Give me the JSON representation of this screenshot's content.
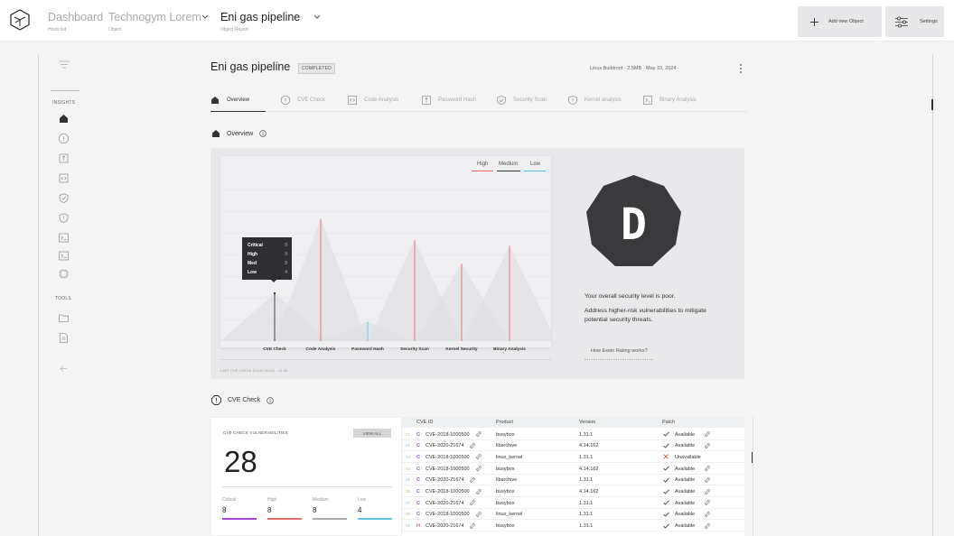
{
  "topbar": {
    "crumbs": [
      {
        "label": "Dashboard",
        "sub": "Hosts list"
      },
      {
        "label": "Technogym Lorem",
        "sub": "Object"
      },
      {
        "label": "Eni gas pipeline",
        "sub": "Object Report"
      }
    ],
    "add_button": "Add new Object",
    "settings_button": "Settings"
  },
  "sidebar": {
    "insights_label": "INSIGHTS",
    "tools_label": "TOOLS"
  },
  "report": {
    "title": "Eni gas pipeline",
    "status": "COMPLETED",
    "meta": "Linux Buildroot · 2.5MB · May 10, 2024 ·"
  },
  "tabs": [
    {
      "label": "Overview",
      "icon": "home-icon"
    },
    {
      "label": "CVE Check",
      "icon": "alert-octagon-icon"
    },
    {
      "label": "Code Analysis",
      "icon": "code-icon"
    },
    {
      "label": "Password Hash",
      "icon": "key-icon"
    },
    {
      "label": "Security Scan",
      "icon": "shield-check-icon"
    },
    {
      "label": "Kernel analysis",
      "icon": "shield-alert-icon"
    },
    {
      "label": "Binary Analysis",
      "icon": "terminal-icon"
    }
  ],
  "overview": {
    "heading": "Overview",
    "legend": [
      {
        "label": "High",
        "color": "#e26d6d"
      },
      {
        "label": "Medium",
        "color": "#333333"
      },
      {
        "label": "Low",
        "color": "#5ec7d4"
      }
    ],
    "tooltip": [
      {
        "label": "Critical",
        "value": "8"
      },
      {
        "label": "High",
        "value": "8"
      },
      {
        "label": "Med",
        "value": "8"
      },
      {
        "label": "Low",
        "value": "4"
      }
    ],
    "last_scan": "LAST CVE CHECK SCAN 10/11/1 - 21:45",
    "rating_grade": "D",
    "rating_msg1": "Your overall security level is poor.",
    "rating_msg2": "Address higher-risk vulnerabilities to mitigate potential security threats.",
    "how_link": "How Exein Rating works?"
  },
  "chart_data": {
    "type": "area",
    "categories": [
      "CVE Check",
      "Code Analysis",
      "Password Hash",
      "Security Scan",
      "Kernel Security",
      "Binary Analysis"
    ],
    "series": [
      {
        "name": "High",
        "values": [
          0,
          0.82,
          0,
          0.68,
          0,
          0.64
        ]
      },
      {
        "name": "Medium",
        "values": [
          0.32,
          0,
          0,
          0,
          0,
          0
        ]
      },
      {
        "name": "Low",
        "values": [
          0,
          0,
          0.13,
          0,
          0,
          0
        ]
      }
    ],
    "peaks": [
      0.32,
      0.82,
      0.13,
      0.68,
      0.52,
      0.64
    ]
  },
  "cve": {
    "heading": "CVE Check",
    "card_label": "CVE CHECK VULNERABILITIES",
    "view_all": "VIEW ALL",
    "total": "28",
    "severities": [
      {
        "label": "Critical",
        "value": "8",
        "color": "#a04ad9"
      },
      {
        "label": "High",
        "value": "8",
        "color": "#e26d6d"
      },
      {
        "label": "Medium",
        "value": "8",
        "color": "#aaaaaa"
      },
      {
        "label": "Low",
        "value": "4",
        "color": "#5ec7d4"
      }
    ],
    "columns": [
      "CVE ID",
      "Product",
      "Version",
      "Patch"
    ],
    "rows": [
      {
        "n": "01",
        "sev": "C",
        "id": "CVE-2018-1000500",
        "product": "busybox",
        "version": "1.31.1",
        "patch": "Available",
        "ok": true
      },
      {
        "n": "02",
        "sev": "C",
        "id": "CVE-2020-21674",
        "product": "libarchive",
        "version": "4.14.162",
        "patch": "Available",
        "ok": true
      },
      {
        "n": "03",
        "sev": "C",
        "id": "CVE-2018-1000500",
        "product": "linux_kernel",
        "version": "1.31.1",
        "patch": "Unavailable",
        "ok": false
      },
      {
        "n": "04",
        "sev": "C",
        "id": "CVE-2018-1000500",
        "product": "busybox",
        "version": "4.14.162",
        "patch": "Available",
        "ok": true
      },
      {
        "n": "05",
        "sev": "C",
        "id": "CVE-2020-21674",
        "product": "libarchive",
        "version": "1.31.1",
        "patch": "Available",
        "ok": true
      },
      {
        "n": "06",
        "sev": "C",
        "id": "CVE-2018-1000500",
        "product": "busybox",
        "version": "4.14.162",
        "patch": "Available",
        "ok": true
      },
      {
        "n": "07",
        "sev": "C",
        "id": "CVE-2020-21674",
        "product": "busybox",
        "version": "1.31.1",
        "patch": "Available",
        "ok": true
      },
      {
        "n": "08",
        "sev": "C",
        "id": "CVE-2018-1000500",
        "product": "linux_kernel",
        "version": "1.31.1",
        "patch": "Available",
        "ok": true
      },
      {
        "n": "09",
        "sev": "H",
        "id": "CVE-2020-21674",
        "product": "busybox",
        "version": "1.31.1",
        "patch": "Available",
        "ok": true
      }
    ]
  }
}
